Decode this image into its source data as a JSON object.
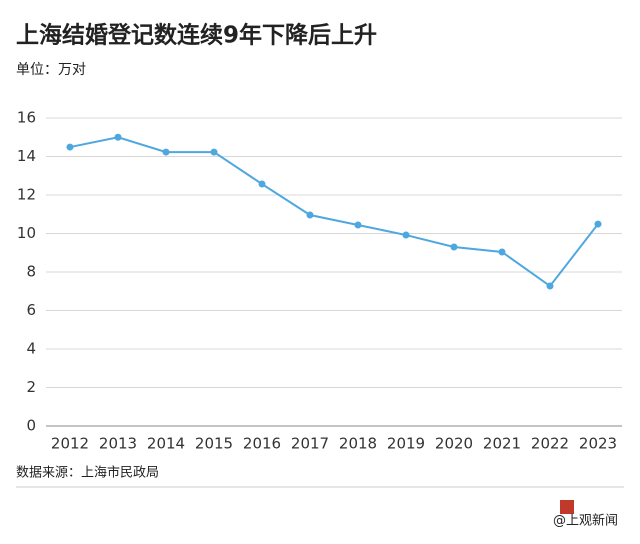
{
  "chart_data": {
    "type": "line",
    "title": "上海结婚登记数连续9年下降后上升",
    "unit": "单位：万对",
    "source": "数据来源：上海市民政局",
    "watermark": "@上观新闻",
    "categories": [
      "2012",
      "2013",
      "2014",
      "2015",
      "2016",
      "2017",
      "2018",
      "2019",
      "2020",
      "2021",
      "2022",
      "2023"
    ],
    "values": [
      14.49,
      15.0,
      14.23,
      14.23,
      12.57,
      10.96,
      10.44,
      9.92,
      9.3,
      9.04,
      7.27,
      10.49
    ],
    "color": "#4fa7df",
    "ylim": [
      0,
      16
    ],
    "yticks": [
      0,
      2,
      4,
      6,
      8,
      10,
      12,
      14,
      16
    ],
    "grid": true
  }
}
